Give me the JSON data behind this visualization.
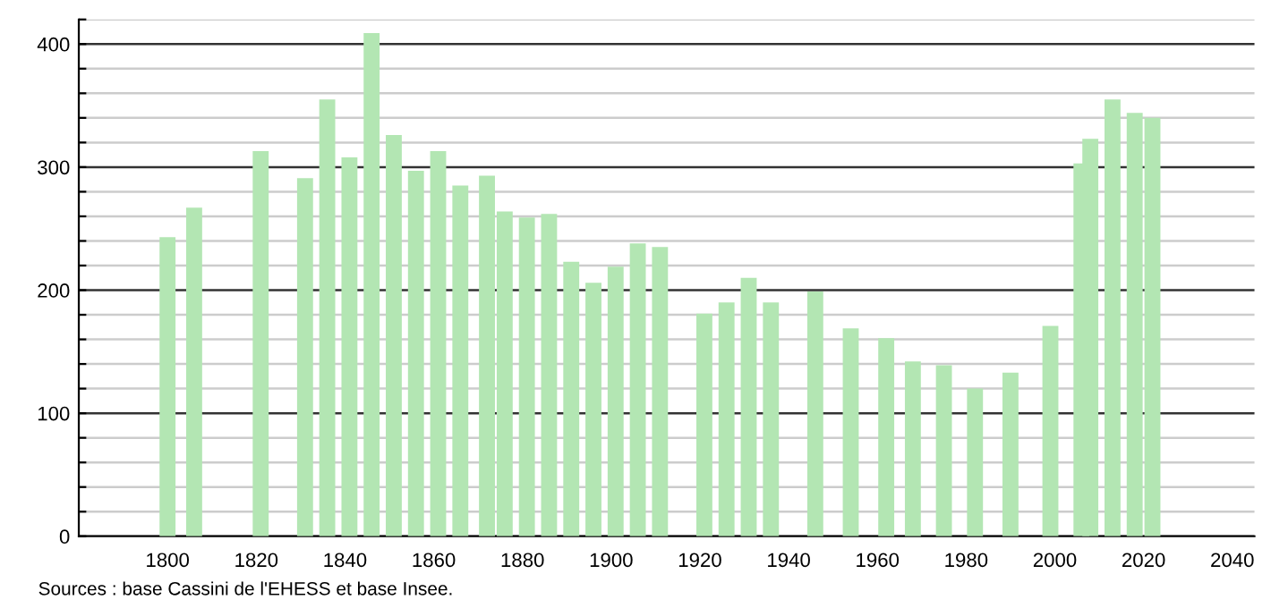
{
  "chart_data": {
    "type": "bar",
    "x": [
      1800,
      1806,
      1821,
      1831,
      1836,
      1841,
      1846,
      1851,
      1856,
      1861,
      1866,
      1872,
      1876,
      1881,
      1886,
      1891,
      1896,
      1901,
      1906,
      1911,
      1921,
      1926,
      1931,
      1936,
      1946,
      1954,
      1962,
      1968,
      1975,
      1982,
      1990,
      1999,
      2006,
      2008,
      2013,
      2018,
      2022
    ],
    "values": [
      243,
      267,
      313,
      291,
      355,
      308,
      409,
      326,
      297,
      313,
      285,
      293,
      264,
      259,
      262,
      223,
      206,
      219,
      238,
      235,
      181,
      190,
      210,
      190,
      199,
      169,
      161,
      142,
      139,
      120,
      133,
      171,
      303,
      323,
      355,
      344,
      340
    ],
    "color": "#b3e6b3",
    "xlim": [
      1780,
      2045
    ],
    "xticks": [
      1800,
      1820,
      1840,
      1860,
      1880,
      1900,
      1920,
      1940,
      1960,
      1980,
      2000,
      2020,
      2040
    ],
    "ylim": [
      0,
      420
    ],
    "yticks": [
      0,
      {
        "value": 20,
        "label": null
      },
      {
        "value": 40,
        "label": null
      },
      {
        "value": 60,
        "label": null
      },
      {
        "value": 80,
        "label": null
      },
      100,
      {
        "value": 120,
        "label": null
      },
      {
        "value": 140,
        "label": null
      },
      {
        "value": 160,
        "label": null
      },
      {
        "value": 180,
        "label": null
      },
      200,
      {
        "value": 220,
        "label": null
      },
      {
        "value": 240,
        "label": null
      },
      {
        "value": 260,
        "label": null
      },
      {
        "value": 280,
        "label": null
      },
      300,
      {
        "value": 320,
        "label": null
      },
      {
        "value": 340,
        "label": null
      },
      {
        "value": 360,
        "label": null
      },
      {
        "value": 380,
        "label": null
      },
      400,
      {
        "value": 420,
        "label": null
      }
    ],
    "grid": "y",
    "annotations": [
      "Sources : base Cassini de l'EHESS et base Insee."
    ]
  }
}
